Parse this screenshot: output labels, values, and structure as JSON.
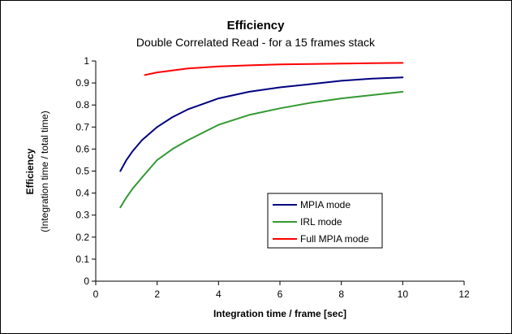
{
  "chart_data": {
    "type": "line",
    "title": "Efficiency",
    "subtitle": "Double Correlated Read - for a 15 frames stack",
    "xlabel": "Integration time / frame [sec]",
    "ylabel": "Efficiency",
    "ylabel_sub": "(Integration time / total time)",
    "xlim": [
      0,
      12
    ],
    "ylim": [
      0,
      1
    ],
    "x_ticks": [
      0,
      2,
      4,
      6,
      8,
      10,
      12
    ],
    "y_ticks": [
      0,
      0.1,
      0.2,
      0.3,
      0.4,
      0.5,
      0.6,
      0.7,
      0.8,
      0.9,
      1
    ],
    "grid": false,
    "legend_position": "bottom-right",
    "series": [
      {
        "name": "MPIA mode",
        "color": "#000080",
        "x": [
          0.8,
          1.0,
          1.2,
          1.5,
          2.0,
          2.5,
          3.0,
          4.0,
          5.0,
          6.0,
          7.0,
          8.0,
          9.0,
          10.0
        ],
        "y": [
          0.5,
          0.55,
          0.59,
          0.64,
          0.7,
          0.745,
          0.78,
          0.83,
          0.86,
          0.88,
          0.895,
          0.91,
          0.92,
          0.925
        ]
      },
      {
        "name": "IRL mode",
        "color": "#339933",
        "x": [
          0.8,
          1.0,
          1.2,
          1.5,
          2.0,
          2.5,
          3.0,
          4.0,
          5.0,
          6.0,
          7.0,
          8.0,
          9.0,
          10.0
        ],
        "y": [
          0.335,
          0.38,
          0.42,
          0.47,
          0.55,
          0.6,
          0.64,
          0.71,
          0.755,
          0.785,
          0.81,
          0.83,
          0.845,
          0.86
        ]
      },
      {
        "name": "Full MPIA mode",
        "color": "#ff0000",
        "x": [
          1.6,
          2.0,
          3.0,
          4.0,
          5.0,
          6.0,
          7.0,
          8.0,
          9.0,
          10.0
        ],
        "y": [
          0.936,
          0.948,
          0.966,
          0.975,
          0.98,
          0.984,
          0.986,
          0.988,
          0.99,
          0.991
        ]
      }
    ]
  }
}
